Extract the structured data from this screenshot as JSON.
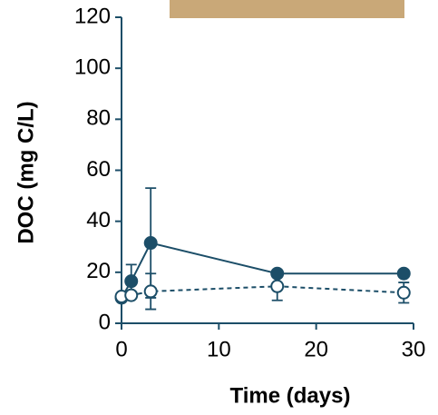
{
  "chart_data": {
    "type": "line",
    "x_label": "Time (days)",
    "y_label": "DOC (mg C/L)",
    "xlim": [
      0,
      30
    ],
    "xticks": [
      0,
      10,
      20,
      30
    ],
    "ylim": [
      0,
      120
    ],
    "yticks": [
      0,
      20,
      40,
      60,
      80,
      100,
      120
    ],
    "axis_color": "#1c4e68",
    "series": [
      {
        "color": "#1c4e68",
        "marker": "filled",
        "dashed": false,
        "x": [
          0,
          1,
          3,
          16,
          29
        ],
        "values": [
          10,
          16.5,
          31.5,
          19.5,
          19.5
        ],
        "errors": [
          0.5,
          6.5,
          21.5,
          1,
          1
        ]
      },
      {
        "color": "#1c4e68",
        "marker": "open",
        "dashed": true,
        "x": [
          0,
          1,
          3,
          16,
          29
        ],
        "values": [
          10.5,
          11,
          12.5,
          14.5,
          12
        ],
        "errors": [
          0.5,
          1,
          7,
          5.5,
          4
        ]
      }
    ]
  }
}
